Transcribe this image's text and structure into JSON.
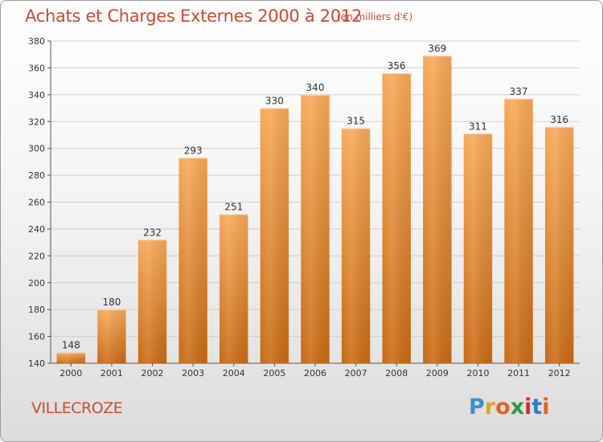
{
  "title": "Achats et Charges Externes 2000 à 2012",
  "subtitle": "(en milliers d'€)",
  "commune": "VILLECROZE",
  "logo": {
    "letters": [
      "P",
      "r",
      "o",
      "x",
      "i",
      "t",
      "i"
    ],
    "colors": [
      "#3a8fd0",
      "#e8a020",
      "#e8601c",
      "#2e9e3e",
      "#d0302a",
      "#2a7fc8",
      "#e8601c"
    ]
  },
  "colors": {
    "title": "#d04a2e",
    "bar_top": "#f7a958",
    "bar_bottom": "#c86a12",
    "grid": "#cfcfcf"
  },
  "chart_data": {
    "type": "bar",
    "categories": [
      "2000",
      "2001",
      "2002",
      "2003",
      "2004",
      "2005",
      "2006",
      "2007",
      "2008",
      "2009",
      "2010",
      "2011",
      "2012"
    ],
    "values": [
      148,
      180,
      232,
      293,
      251,
      330,
      340,
      315,
      356,
      369,
      311,
      337,
      316
    ],
    "ylim": [
      140,
      380
    ],
    "yticks": [
      140,
      160,
      180,
      200,
      220,
      240,
      260,
      280,
      300,
      320,
      340,
      360,
      380
    ],
    "grid": true,
    "data_labels": true
  }
}
